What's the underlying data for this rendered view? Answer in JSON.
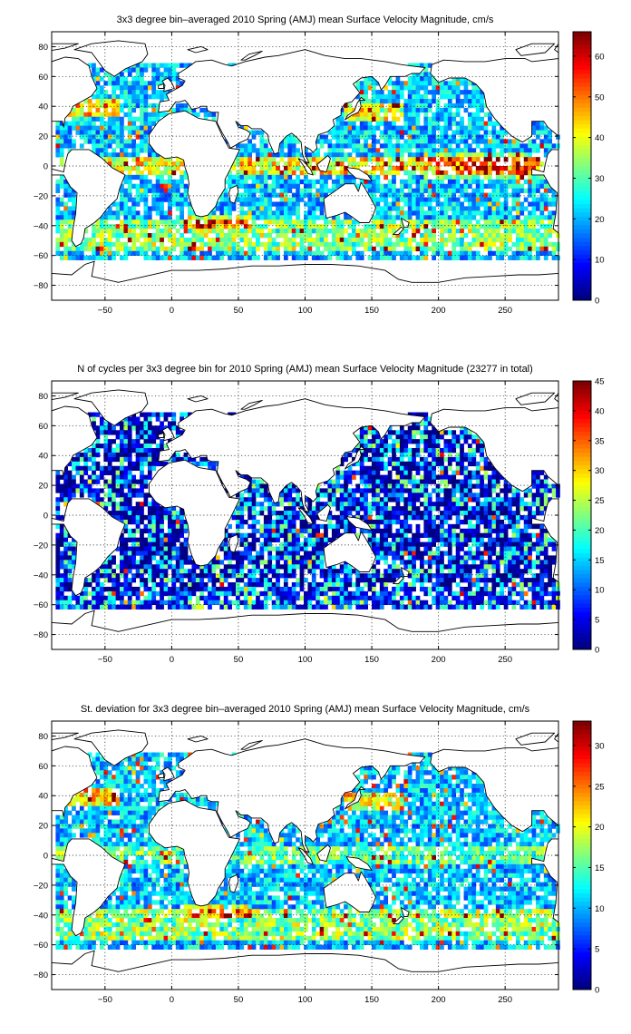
{
  "chart_data": [
    {
      "type": "heatmap",
      "title": "3x3 degree bin–averaged 2010 Spring (AMJ) mean Surface Velocity Magnitude, cm/s",
      "xlabel": "",
      "ylabel": "",
      "xlim": [
        -90,
        290
      ],
      "ylim": [
        -90,
        90
      ],
      "xticks": [
        -50,
        0,
        50,
        100,
        150,
        200,
        250
      ],
      "yticks": [
        80,
        60,
        40,
        20,
        0,
        -20,
        -40,
        -60,
        -80
      ],
      "colorbar": {
        "min": 0,
        "max": 66,
        "ticks": [
          0,
          10,
          20,
          30,
          40,
          50,
          60
        ],
        "colormap": "jet"
      },
      "bin_size_deg": 3,
      "field": "mean_speed",
      "grid": true
    },
    {
      "type": "heatmap",
      "title": "N of cycles per 3x3 degree bin for 2010 Spring (AMJ) mean Surface Velocity Magnitude (23277 in total)",
      "xlabel": "",
      "ylabel": "",
      "xlim": [
        -90,
        290
      ],
      "ylim": [
        -90,
        90
      ],
      "xticks": [
        -50,
        0,
        50,
        100,
        150,
        200,
        250
      ],
      "yticks": [
        80,
        60,
        40,
        20,
        0,
        -20,
        -40,
        -60,
        -80
      ],
      "colorbar": {
        "min": 0,
        "max": 45,
        "ticks": [
          0,
          5,
          10,
          15,
          20,
          25,
          30,
          35,
          40,
          45
        ],
        "colormap": "jet"
      },
      "bin_size_deg": 3,
      "field": "n_cycles",
      "total_cycles": 23277,
      "grid": true
    },
    {
      "type": "heatmap",
      "title": "St. deviation for 3x3 degree bin–averaged 2010 Spring (AMJ) mean Surface Velocity Magnitude, cm/s",
      "xlabel": "",
      "ylabel": "",
      "xlim": [
        -90,
        290
      ],
      "ylim": [
        -90,
        90
      ],
      "xticks": [
        -50,
        0,
        50,
        100,
        150,
        200,
        250
      ],
      "yticks": [
        80,
        60,
        40,
        20,
        0,
        -20,
        -40,
        -60,
        -80
      ],
      "colorbar": {
        "min": 0,
        "max": 33,
        "ticks": [
          0,
          5,
          10,
          15,
          20,
          25,
          30
        ],
        "colormap": "jet"
      },
      "bin_size_deg": 3,
      "field": "std_speed",
      "grid": true
    }
  ],
  "colors": {
    "background": "#ffffff",
    "land": "#ffffff",
    "coastline": "#000000"
  }
}
